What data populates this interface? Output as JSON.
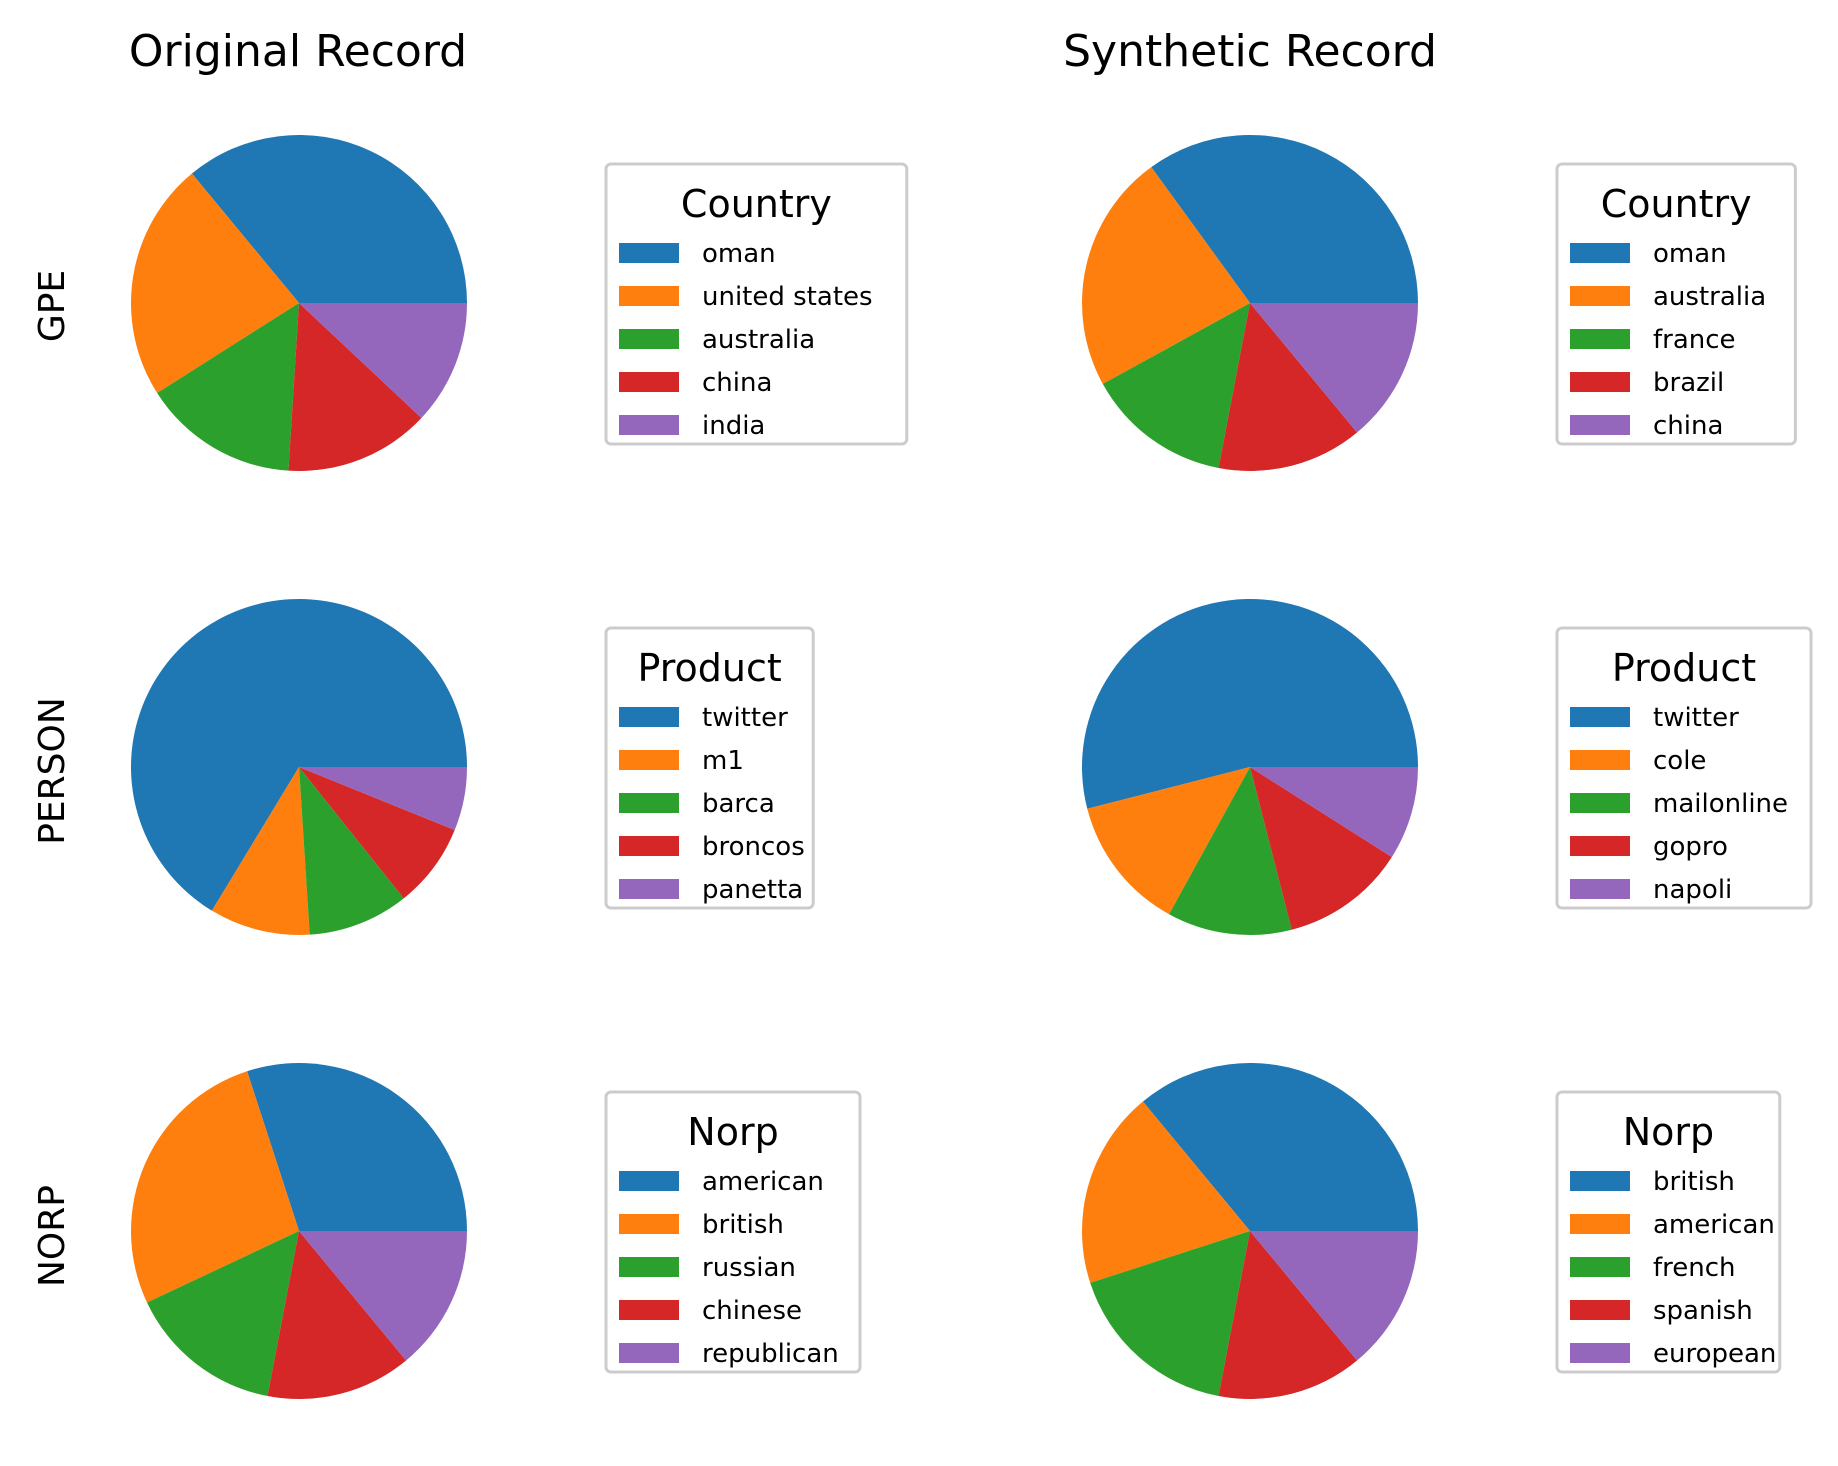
{
  "figure": {
    "column_titles": [
      "Original Record",
      "Synthetic Record"
    ],
    "row_labels": [
      "GPE",
      "PERSON",
      "NORP"
    ]
  },
  "palette": [
    "#1f77b4",
    "#ff7f0e",
    "#2ca02c",
    "#d62728",
    "#9467bd"
  ],
  "chart_data": [
    {
      "type": "pie",
      "row": 0,
      "col": 0,
      "legend_title": "Country",
      "legend_placement": "right",
      "labels": [
        "oman",
        "united states",
        "australia",
        "china",
        "india"
      ],
      "values": [
        36,
        23,
        15,
        14,
        12
      ]
    },
    {
      "type": "pie",
      "row": 0,
      "col": 1,
      "legend_title": "Country",
      "legend_placement": "right",
      "labels": [
        "oman",
        "australia",
        "france",
        "brazil",
        "china"
      ],
      "values": [
        35,
        23,
        14,
        14,
        14
      ]
    },
    {
      "type": "pie",
      "row": 1,
      "col": 0,
      "legend_title": "Product",
      "legend_placement": "right",
      "labels": [
        "twitter",
        "m1",
        "barca",
        "broncos",
        "panetta"
      ],
      "values": [
        65,
        9.5,
        9.5,
        8,
        6
      ]
    },
    {
      "type": "pie",
      "row": 1,
      "col": 1,
      "legend_title": "Product",
      "legend_placement": "right",
      "labels": [
        "twitter",
        "cole",
        "mailonline",
        "gopro",
        "napoli"
      ],
      "values": [
        54,
        13,
        12,
        12,
        9
      ]
    },
    {
      "type": "pie",
      "row": 2,
      "col": 0,
      "legend_title": "Norp",
      "legend_placement": "right",
      "labels": [
        "american",
        "british",
        "russian",
        "chinese",
        "republican"
      ],
      "values": [
        30,
        27,
        15,
        14,
        14
      ]
    },
    {
      "type": "pie",
      "row": 2,
      "col": 1,
      "legend_title": "Norp",
      "legend_placement": "right",
      "labels": [
        "british",
        "american",
        "french",
        "spanish",
        "european"
      ],
      "values": [
        36,
        19,
        17,
        14,
        14
      ]
    }
  ]
}
